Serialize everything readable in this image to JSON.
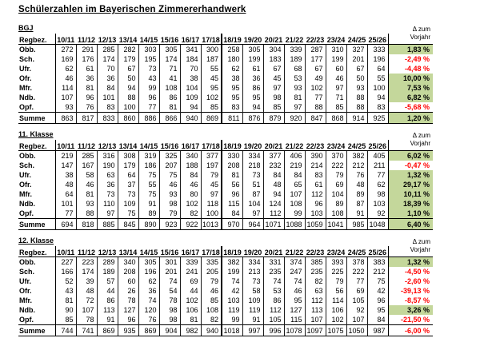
{
  "title": "Schülerzahlen im Bayerischen Zimmererhandwerk",
  "row_label_header": "Regbez.",
  "delta_header": {
    "line1": "Δ zum",
    "line2": "Vorjahr"
  },
  "columns": [
    "10/11",
    "11/12",
    "12/13",
    "13/14",
    "14/15",
    "15/16",
    "16/17",
    "17/18",
    "18/19",
    "19/20",
    "20/21",
    "21/22",
    "22/23",
    "23/24",
    "24/25",
    "25/26"
  ],
  "colors": {
    "positive_bg": "#c4d79b",
    "negative_text": "#ff0000"
  },
  "tables": [
    {
      "label": "BGJ",
      "rows": [
        {
          "label": "Obb.",
          "values": [
            272,
            291,
            285,
            282,
            303,
            305,
            341,
            300,
            258,
            305,
            304,
            339,
            287,
            310,
            327,
            333
          ],
          "delta": "1,83 %",
          "positive": true
        },
        {
          "label": "Sch.",
          "values": [
            169,
            176,
            174,
            179,
            195,
            174,
            184,
            187,
            180,
            199,
            183,
            189,
            177,
            199,
            201,
            196
          ],
          "delta": "-2,49 %",
          "positive": false
        },
        {
          "label": "Ufr.",
          "values": [
            62,
            61,
            70,
            67,
            73,
            71,
            70,
            55,
            62,
            61,
            67,
            68,
            67,
            60,
            67,
            64
          ],
          "delta": "-4,48 %",
          "positive": false
        },
        {
          "label": "Ofr.",
          "values": [
            46,
            36,
            36,
            50,
            43,
            41,
            38,
            45,
            38,
            36,
            45,
            53,
            49,
            46,
            50,
            55
          ],
          "delta": "10,00 %",
          "positive": true
        },
        {
          "label": "Mfr.",
          "values": [
            114,
            81,
            84,
            94,
            99,
            108,
            104,
            95,
            95,
            86,
            97,
            93,
            102,
            97,
            93,
            100
          ],
          "delta": "7,53 %",
          "positive": true
        },
        {
          "label": "Ndb.",
          "values": [
            107,
            96,
            101,
            88,
            96,
            86,
            109,
            102,
            95,
            95,
            98,
            81,
            77,
            71,
            88,
            94
          ],
          "delta": "6,82 %",
          "positive": true
        },
        {
          "label": "Opf.",
          "values": [
            93,
            76,
            83,
            100,
            77,
            81,
            94,
            85,
            83,
            94,
            85,
            97,
            88,
            85,
            88,
            83
          ],
          "delta": "-5,68 %",
          "positive": false
        }
      ],
      "summe": {
        "label": "Summe",
        "values": [
          863,
          817,
          833,
          860,
          886,
          866,
          940,
          869,
          811,
          876,
          879,
          920,
          847,
          868,
          914,
          925
        ],
        "delta": "1,20 %",
        "positive": true
      }
    },
    {
      "label": "11. Klasse",
      "rows": [
        {
          "label": "Obb.",
          "values": [
            219,
            285,
            316,
            308,
            319,
            325,
            340,
            377,
            330,
            334,
            377,
            406,
            390,
            370,
            382,
            405
          ],
          "delta": "6,02 %",
          "positive": true
        },
        {
          "label": "Sch.",
          "values": [
            147,
            167,
            190,
            179,
            186,
            207,
            188,
            197,
            208,
            218,
            232,
            219,
            214,
            222,
            212,
            211
          ],
          "delta": "-0,47 %",
          "positive": false
        },
        {
          "label": "Ufr.",
          "values": [
            38,
            58,
            63,
            64,
            75,
            75,
            84,
            79,
            81,
            73,
            84,
            84,
            83,
            79,
            76,
            77
          ],
          "delta": "1,32 %",
          "positive": true
        },
        {
          "label": "Ofr.",
          "values": [
            48,
            46,
            36,
            37,
            55,
            46,
            46,
            45,
            56,
            51,
            48,
            65,
            61,
            69,
            48,
            62
          ],
          "delta": "29,17 %",
          "positive": true
        },
        {
          "label": "Mfr.",
          "values": [
            64,
            81,
            73,
            73,
            75,
            93,
            80,
            97,
            96,
            87,
            94,
            107,
            112,
            104,
            89,
            98
          ],
          "delta": "10,11 %",
          "positive": true
        },
        {
          "label": "Ndb.",
          "values": [
            101,
            93,
            110,
            109,
            91,
            98,
            102,
            118,
            115,
            104,
            124,
            108,
            96,
            89,
            87,
            103
          ],
          "delta": "18,39 %",
          "positive": true
        },
        {
          "label": "Opf.",
          "values": [
            77,
            88,
            97,
            75,
            89,
            79,
            82,
            100,
            84,
            97,
            112,
            99,
            103,
            108,
            91,
            92
          ],
          "delta": "1,10 %",
          "positive": true
        }
      ],
      "summe": {
        "label": "Summe",
        "values": [
          694,
          818,
          885,
          845,
          890,
          923,
          922,
          1013,
          970,
          964,
          1071,
          1088,
          1059,
          1041,
          985,
          1048
        ],
        "delta": "6,40 %",
        "positive": true
      }
    },
    {
      "label": "12. Klasse",
      "rows": [
        {
          "label": "Obb.",
          "values": [
            227,
            223,
            289,
            340,
            305,
            301,
            339,
            335,
            382,
            334,
            331,
            374,
            385,
            393,
            378,
            383
          ],
          "delta": "1,32 %",
          "positive": true
        },
        {
          "label": "Sch.",
          "values": [
            166,
            174,
            189,
            208,
            196,
            201,
            241,
            205,
            199,
            213,
            235,
            247,
            235,
            225,
            222,
            212
          ],
          "delta": "-4,50 %",
          "positive": false
        },
        {
          "label": "Ufr.",
          "values": [
            52,
            39,
            57,
            60,
            62,
            74,
            69,
            79,
            74,
            73,
            74,
            74,
            82,
            79,
            77,
            75
          ],
          "delta": "-2,60 %",
          "positive": false
        },
        {
          "label": "Ofr.",
          "values": [
            43,
            48,
            44,
            26,
            36,
            54,
            44,
            46,
            42,
            58,
            53,
            46,
            63,
            56,
            69,
            42
          ],
          "delta": "-39,13 %",
          "positive": false
        },
        {
          "label": "Mfr.",
          "values": [
            81,
            72,
            86,
            78,
            74,
            78,
            102,
            85,
            103,
            109,
            86,
            95,
            112,
            114,
            105,
            96
          ],
          "delta": "-8,57 %",
          "positive": false
        },
        {
          "label": "Ndb.",
          "values": [
            90,
            107,
            113,
            127,
            120,
            98,
            106,
            108,
            119,
            119,
            112,
            127,
            113,
            106,
            92,
            95
          ],
          "delta": "3,26 %",
          "positive": true
        },
        {
          "label": "Opf.",
          "values": [
            85,
            78,
            91,
            96,
            76,
            98,
            81,
            82,
            99,
            91,
            105,
            115,
            107,
            102,
            107,
            84
          ],
          "delta": "-21,50 %",
          "positive": false
        }
      ],
      "summe": {
        "label": "Summe",
        "values": [
          744,
          741,
          869,
          935,
          869,
          904,
          982,
          940,
          1018,
          997,
          996,
          1078,
          1097,
          1075,
          1050,
          987
        ],
        "delta": "-6,00 %",
        "positive": false
      }
    }
  ]
}
